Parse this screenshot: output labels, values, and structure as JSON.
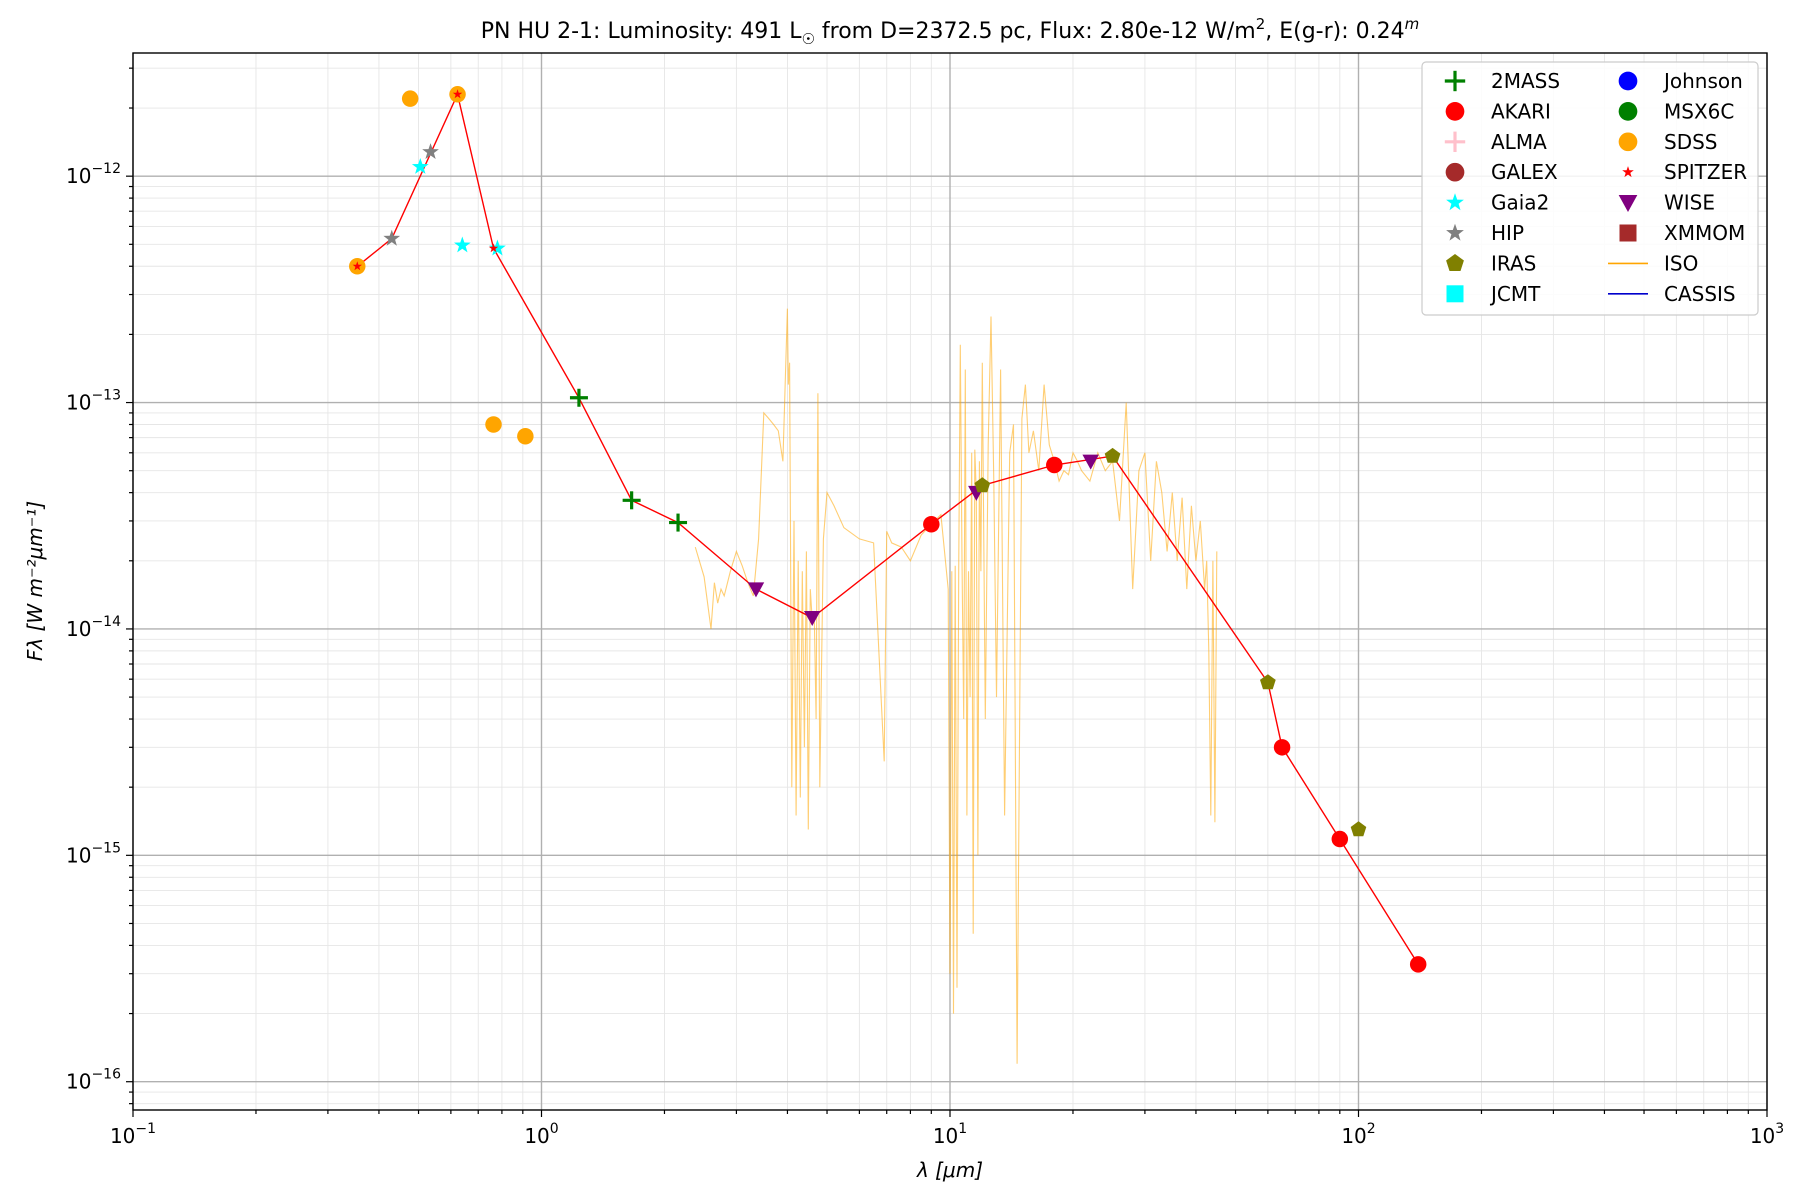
{
  "chart_data": {
    "type": "scatter",
    "title": {
      "prefix": "PN HU 2-1:  Luminosity: 491 L",
      "sun": "☉",
      "middle": " from D=2372.5 pc, Flux: 2.80e-12 W/m",
      "sup1": "2",
      "after": ", E(g-r): 0.24",
      "sup2": "m"
    },
    "xlabel": "λ [μm]",
    "ylabel": "Fλ [W m⁻²μm⁻¹]",
    "x_scale": "log",
    "y_scale": "log",
    "xlim": [
      0.1,
      1000
    ],
    "ylim": [
      7.5e-17,
      3.5e-12
    ],
    "x_ticks": [
      {
        "value": 0.1,
        "base": "10",
        "exp": "−1"
      },
      {
        "value": 1,
        "base": "10",
        "exp": "0"
      },
      {
        "value": 10,
        "base": "10",
        "exp": "1"
      },
      {
        "value": 100,
        "base": "10",
        "exp": "2"
      },
      {
        "value": 1000,
        "base": "10",
        "exp": "3"
      }
    ],
    "y_ticks": [
      {
        "value": 1e-16,
        "base": "10",
        "exp": "−16"
      },
      {
        "value": 1e-15,
        "base": "10",
        "exp": "−15"
      },
      {
        "value": 1e-14,
        "base": "10",
        "exp": "−14"
      },
      {
        "value": 1e-13,
        "base": "10",
        "exp": "−13"
      },
      {
        "value": 1e-12,
        "base": "10",
        "exp": "−12"
      }
    ],
    "grid": true,
    "legend_position": "top-right",
    "legend": [
      {
        "name": "2MASS",
        "marker": "plus",
        "color": "#008000"
      },
      {
        "name": "Johnson",
        "marker": "circle",
        "color": "#0000ff"
      },
      {
        "name": "AKARI",
        "marker": "circle",
        "color": "#ff0000"
      },
      {
        "name": "MSX6C",
        "marker": "circle",
        "color": "#008000"
      },
      {
        "name": "ALMA",
        "marker": "plus",
        "color": "#ffc0cb"
      },
      {
        "name": "SDSS",
        "marker": "circle",
        "color": "#ffa500"
      },
      {
        "name": "GALEX",
        "marker": "circle",
        "color": "#a52a2a"
      },
      {
        "name": "SPITZER",
        "marker": "star",
        "color": "#ff0000"
      },
      {
        "name": "Gaia2",
        "marker": "star",
        "color": "#00ffff"
      },
      {
        "name": "WISE",
        "marker": "triangle-down",
        "color": "#800080"
      },
      {
        "name": "HIP",
        "marker": "star",
        "color": "#808080"
      },
      {
        "name": "XMMOM",
        "marker": "square",
        "color": "#a52a2a"
      },
      {
        "name": "IRAS",
        "marker": "pentagon",
        "color": "#808000"
      },
      {
        "name": "ISO",
        "marker": "line",
        "color": "#ffa500"
      },
      {
        "name": "JCMT",
        "marker": "square",
        "color": "#00ffff"
      },
      {
        "name": "CASSIS",
        "marker": "line",
        "color": "#0000cc"
      }
    ],
    "sed_line": {
      "color": "#ff0000",
      "x": [
        0.354,
        0.43,
        0.623,
        0.763,
        1.235,
        1.662,
        2.159,
        3.35,
        4.6,
        9.0,
        12.0,
        18.0,
        25.0,
        60.0,
        65.0,
        90.0,
        140.0
      ],
      "y": [
        4e-13,
        5.3e-13,
        2.3e-12,
        4.8e-13,
        1.05e-13,
        3.7e-14,
        2.95e-14,
        1.5e-14,
        1.12e-14,
        2.9e-14,
        4.3e-14,
        5.3e-14,
        5.8e-14,
        5.8e-15,
        3e-15,
        1.18e-15,
        3.3e-16
      ]
    },
    "series": [
      {
        "name": "SDSS",
        "marker": "circle",
        "color": "#ffa500",
        "x": [
          0.354,
          0.477,
          0.623,
          0.763,
          0.913
        ],
        "y": [
          4e-13,
          2.2e-12,
          2.3e-12,
          8e-14,
          7.1e-14
        ]
      },
      {
        "name": "2MASS",
        "marker": "plus",
        "color": "#008000",
        "x": [
          1.235,
          1.662,
          2.159
        ],
        "y": [
          1.05e-13,
          3.7e-14,
          2.95e-14
        ]
      },
      {
        "name": "AKARI",
        "marker": "circle",
        "color": "#ff0000",
        "x": [
          9.0,
          18.0,
          65.0,
          90.0,
          140.0
        ],
        "y": [
          2.9e-14,
          5.3e-14,
          3e-15,
          1.18e-15,
          3.3e-16
        ]
      },
      {
        "name": "WISE",
        "marker": "triangle-down",
        "color": "#800080",
        "x": [
          3.35,
          4.6,
          11.6,
          22.1
        ],
        "y": [
          1.5e-14,
          1.12e-14,
          4e-14,
          5.5e-14
        ]
      },
      {
        "name": "IRAS",
        "marker": "pentagon",
        "color": "#808000",
        "x": [
          12.0,
          25.0,
          60.0,
          100.0
        ],
        "y": [
          4.3e-14,
          5.8e-14,
          5.8e-15,
          1.3e-15
        ]
      },
      {
        "name": "HIP",
        "marker": "star",
        "color": "#808080",
        "x": [
          0.43,
          0.535
        ],
        "y": [
          5.3e-13,
          1.28e-12
        ]
      },
      {
        "name": "Gaia2",
        "marker": "star",
        "color": "#00ffff",
        "x": [
          0.505,
          0.64,
          0.78
        ],
        "y": [
          1.1e-12,
          4.95e-13,
          4.8e-13
        ]
      },
      {
        "name": "SPITZER",
        "marker": "star",
        "color": "#ff0000",
        "x": [
          0.354,
          0.623,
          0.763
        ],
        "y": [
          4e-13,
          2.3e-12,
          4.8e-13
        ]
      }
    ],
    "iso_spectrum": {
      "name": "ISO",
      "color": "#ffa500",
      "x": [
        2.38,
        2.5,
        2.6,
        2.65,
        2.7,
        2.75,
        2.8,
        2.9,
        3.0,
        3.1,
        3.2,
        3.3,
        3.4,
        3.5,
        3.6,
        3.7,
        3.8,
        3.9,
        4.0,
        4.02,
        4.05,
        4.1,
        4.15,
        4.2,
        4.25,
        4.3,
        4.35,
        4.4,
        4.45,
        4.5,
        4.55,
        4.6,
        4.65,
        4.7,
        4.75,
        4.8,
        4.9,
        5.0,
        5.2,
        5.5,
        6.0,
        6.5,
        6.9,
        7.0,
        7.2,
        7.6,
        8.0,
        8.5,
        9.0,
        9.5,
        9.9,
        10.0,
        10.1,
        10.2,
        10.3,
        10.4,
        10.5,
        10.6,
        10.7,
        10.8,
        10.9,
        11.0,
        11.1,
        11.2,
        11.3,
        11.4,
        11.5,
        11.6,
        11.7,
        11.8,
        11.9,
        12.0,
        12.2,
        12.4,
        12.6,
        12.8,
        13.0,
        13.3,
        13.6,
        14.0,
        14.3,
        14.6,
        15.0,
        15.3,
        15.6,
        16.0,
        16.5,
        17.0,
        17.5,
        18.0,
        18.5,
        19.0,
        19.5,
        20.0,
        20.5,
        21.0,
        22.0,
        23.0,
        24.0,
        25.0,
        26.0,
        27.0,
        28.0,
        29.0,
        30.0,
        31.0,
        32.0,
        33.0,
        34.0,
        35.0,
        36.0,
        37.0,
        38.0,
        39.0,
        40.0,
        41.0,
        42.0,
        42.5,
        43.0,
        43.5,
        44.0,
        44.5,
        45.0
      ],
      "y": [
        2.3e-14,
        1.7e-14,
        1e-14,
        1.6e-14,
        1.3e-14,
        1.5e-14,
        1.4e-14,
        1.8e-14,
        2.2e-14,
        1.9e-14,
        1.6e-14,
        1.4e-14,
        2.5e-14,
        9e-14,
        8.5e-14,
        8e-14,
        7.5e-14,
        5.5e-14,
        2.6e-13,
        1.2e-13,
        1.5e-13,
        2e-15,
        3e-14,
        1.5e-15,
        2e-14,
        1.8e-15,
        1.8e-14,
        3e-15,
        2.2e-14,
        1.3e-15,
        1.5e-14,
        1.1e-14,
        1.2e-14,
        4e-15,
        1.1e-13,
        2e-15,
        2.5e-14,
        4e-14,
        3.5e-14,
        2.8e-14,
        2.5e-14,
        2.4e-14,
        2.6e-15,
        2.7e-14,
        2.4e-14,
        2.3e-14,
        2e-14,
        2.6e-14,
        2.9e-14,
        3.2e-14,
        1.5e-14,
        3e-16,
        1.8e-14,
        2e-16,
        1.9e-14,
        2.6e-16,
        1.8e-14,
        1.8e-13,
        2e-14,
        4e-15,
        1.4e-13,
        1.5e-15,
        1.8e-14,
        5e-15,
        6e-14,
        4.5e-16,
        6.2e-14,
        4e-14,
        1e-15,
        5.5e-14,
        1.8e-14,
        1.5e-13,
        4e-15,
        6.5e-14,
        2.4e-13,
        4.5e-14,
        5e-15,
        1.4e-13,
        1.5e-15,
        6e-14,
        8e-14,
        1.2e-16,
        8.5e-14,
        1.2e-13,
        6e-14,
        7.5e-14,
        5e-14,
        1.2e-13,
        6.5e-14,
        5.5e-14,
        4.5e-14,
        5e-14,
        4.8e-14,
        6e-14,
        5.5e-14,
        5e-14,
        4.5e-14,
        6e-14,
        5e-14,
        5.5e-14,
        3e-14,
        1e-13,
        1.5e-14,
        5e-14,
        6e-14,
        2e-14,
        5.5e-14,
        4e-14,
        2.2e-14,
        4e-14,
        2e-14,
        3.8e-14,
        1.5e-14,
        3.5e-14,
        2e-14,
        3e-14,
        1.5e-14,
        2e-14,
        8e-15,
        1.5e-15,
        2e-14,
        1.4e-15,
        2.2e-14
      ]
    }
  }
}
